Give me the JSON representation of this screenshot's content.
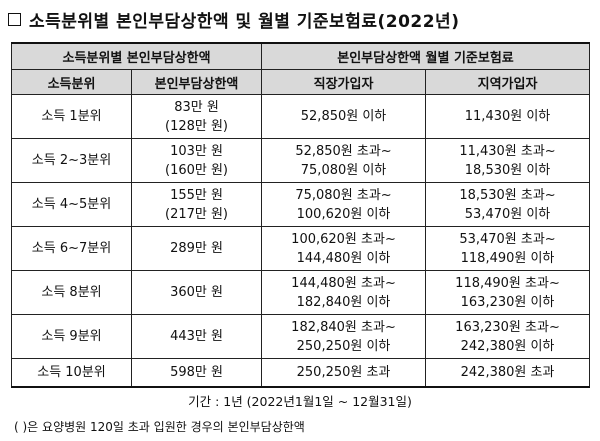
{
  "title": "소득분위별 본인부담상한액 및 월별 기준보험료(2022년)",
  "table": {
    "group_headers": [
      "소득분위별 본인부담상한액",
      "본인부담상한액 월별 기준보험료"
    ],
    "sub_headers": [
      "소득분위",
      "본인부담상한액",
      "직장가입자",
      "지역가입자"
    ],
    "rows": [
      {
        "decile": "소득 1분위",
        "cap": [
          "83만 원",
          "(128만 원)"
        ],
        "employee": [
          "52,850원 이하"
        ],
        "regional": [
          "11,430원 이하"
        ]
      },
      {
        "decile": "소득 2~3분위",
        "cap": [
          "103만 원",
          "(160만 원)"
        ],
        "employee": [
          "52,850원 초과~",
          "75,080원 이하"
        ],
        "regional": [
          "11,430원 초과~",
          "18,530원 이하"
        ]
      },
      {
        "decile": "소득 4~5분위",
        "cap": [
          "155만 원",
          "(217만 원)"
        ],
        "employee": [
          "75,080원 초과~",
          "100,620원 이하"
        ],
        "regional": [
          "18,530원 초과~",
          "53,470원 이하"
        ]
      },
      {
        "decile": "소득 6~7분위",
        "cap": [
          "289만 원"
        ],
        "employee": [
          "100,620원 초과~",
          "144,480원 이하"
        ],
        "regional": [
          "53,470원 초과~",
          "118,490원 이하"
        ]
      },
      {
        "decile": "소득 8분위",
        "cap": [
          "360만 원"
        ],
        "employee": [
          "144,480원 초과~",
          "182,840원 이하"
        ],
        "regional": [
          "118,490원 초과~",
          "163,230원 이하"
        ]
      },
      {
        "decile": "소득 9분위",
        "cap": [
          "443만 원"
        ],
        "employee": [
          "182,840원 초과~",
          "250,250원 이하"
        ],
        "regional": [
          "163,230원 초과~",
          "242,380원 이하"
        ]
      },
      {
        "decile": "소득 10분위",
        "cap": [
          "598만 원"
        ],
        "employee": [
          "250,250원 초과"
        ],
        "regional": [
          "242,380원 초과"
        ]
      }
    ]
  },
  "period": "기간 : 1년 (2022년1월1일 ~ 12월31일)",
  "note": "(   )은 요양병원 120일 초과 입원한 경우의 본인부담상한액"
}
